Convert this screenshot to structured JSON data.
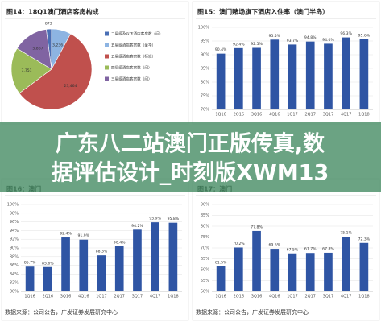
{
  "chart_data": [
    {
      "type": "pie",
      "title": "图14：18Q1澳门酒店客房构成",
      "categories": [
        "二星级及以下酒店客房数（间）",
        "五星级酒店客房数（豪华）",
        "五星级酒店客房数（标准）",
        "四星级酒店客房数（间）",
        "三星级酒店客房数（间）"
      ],
      "values": [
        873,
        3236,
        23464,
        7751,
        5867
      ],
      "value_labels": [
        "873",
        "3,236",
        "23,464",
        "7,751",
        "5,867"
      ],
      "colors": [
        "#4a6fb5",
        "#8db4e2",
        "#c0504d",
        "#9bbb59",
        "#8064a2"
      ]
    },
    {
      "type": "bar",
      "title": "图15：澳门赌场旗下酒店入住率（澳门半岛）",
      "categories": [
        "1Q16",
        "2Q16",
        "3Q16",
        "4Q16",
        "1Q17",
        "2Q17",
        "3Q17",
        "4Q17",
        "1Q18"
      ],
      "values": [
        90.4,
        92.4,
        92.5,
        95.5,
        93.7,
        94.8,
        94.0,
        96.3,
        95.6
      ],
      "value_labels": [
        "90.4%",
        "92.4%",
        "92.5%",
        "95.5%",
        "93.7%",
        "94.8%",
        "94.0%",
        "96.3%",
        "95.6%"
      ],
      "color": "#2f55a4",
      "ylim": [
        70,
        100
      ],
      "yticks": [
        {
          "value": 70,
          "label": "70%"
        },
        {
          "value": 75,
          "label": "75%"
        },
        {
          "value": 80,
          "label": "80%"
        },
        {
          "value": 85,
          "label": "85%"
        },
        {
          "value": 90,
          "label": "90%"
        },
        {
          "value": 95,
          "label": "95%"
        },
        {
          "value": 100,
          "label": "100%"
        }
      ],
      "grid": true
    },
    {
      "type": "bar",
      "title": "图16：澳门",
      "categories": [
        "1Q16",
        "2Q16",
        "3Q16",
        "4Q16",
        "1Q17",
        "2Q17",
        "3Q17",
        "4Q17",
        "1Q18"
      ],
      "values": [
        85.7,
        85.6,
        92.4,
        91.9,
        88.3,
        90.4,
        94.2,
        95.9,
        95.8
      ],
      "value_labels": [
        "85.7%",
        "85.6%",
        "92.4%",
        "91.9%",
        "88.3%",
        "90.4%",
        "94.2%",
        "95.9%",
        "95.8%"
      ],
      "color": "#2f55a4",
      "ylim": [
        80,
        100
      ],
      "yticks": [
        {
          "value": 80,
          "label": "80%"
        },
        {
          "value": 82,
          "label": "82%"
        },
        {
          "value": 84,
          "label": "84%"
        },
        {
          "value": 86,
          "label": "86%"
        },
        {
          "value": 88,
          "label": "88%"
        },
        {
          "value": 90,
          "label": "90%"
        },
        {
          "value": 92,
          "label": "92%"
        },
        {
          "value": 94,
          "label": "94%"
        },
        {
          "value": 96,
          "label": "96%"
        },
        {
          "value": 98,
          "label": "98%"
        },
        {
          "value": 100,
          "label": "100%"
        }
      ],
      "grid": true,
      "source": "数据来源：公司公告，广发证券发展研究中心"
    },
    {
      "type": "bar",
      "title": "图17：澳门",
      "categories": [
        "1Q16",
        "2Q16",
        "3Q16",
        "4Q16",
        "1Q17",
        "2Q17",
        "3Q17",
        "4Q17",
        "1Q18"
      ],
      "values": [
        61.5,
        70.2,
        77.8,
        69.6,
        67.5,
        67.7,
        67.8,
        75.1,
        72.3
      ],
      "value_labels": [
        "61.5%",
        "70.2%",
        "77.8%",
        "69.6%",
        "67.5%",
        "67.7%",
        "67.8%",
        "75.1%",
        "72.3%"
      ],
      "color": "#2f55a4",
      "ylim": [
        50,
        90
      ],
      "yticks": [
        {
          "value": 50,
          "label": "50%"
        },
        {
          "value": 55,
          "label": "55%"
        },
        {
          "value": 60,
          "label": "60%"
        },
        {
          "value": 65,
          "label": "65%"
        },
        {
          "value": 70,
          "label": "70%"
        },
        {
          "value": 75,
          "label": "75%"
        },
        {
          "value": 80,
          "label": "80%"
        },
        {
          "value": 85,
          "label": "85%"
        },
        {
          "value": 90,
          "label": "90%"
        }
      ],
      "grid": true,
      "source": "数据来源：公司公告，广发证券发展研究中心"
    }
  ],
  "overlay": {
    "lines": [
      "广东八二站澳门正版传真,数",
      "据评估设计_时刻版XWM13"
    ]
  }
}
